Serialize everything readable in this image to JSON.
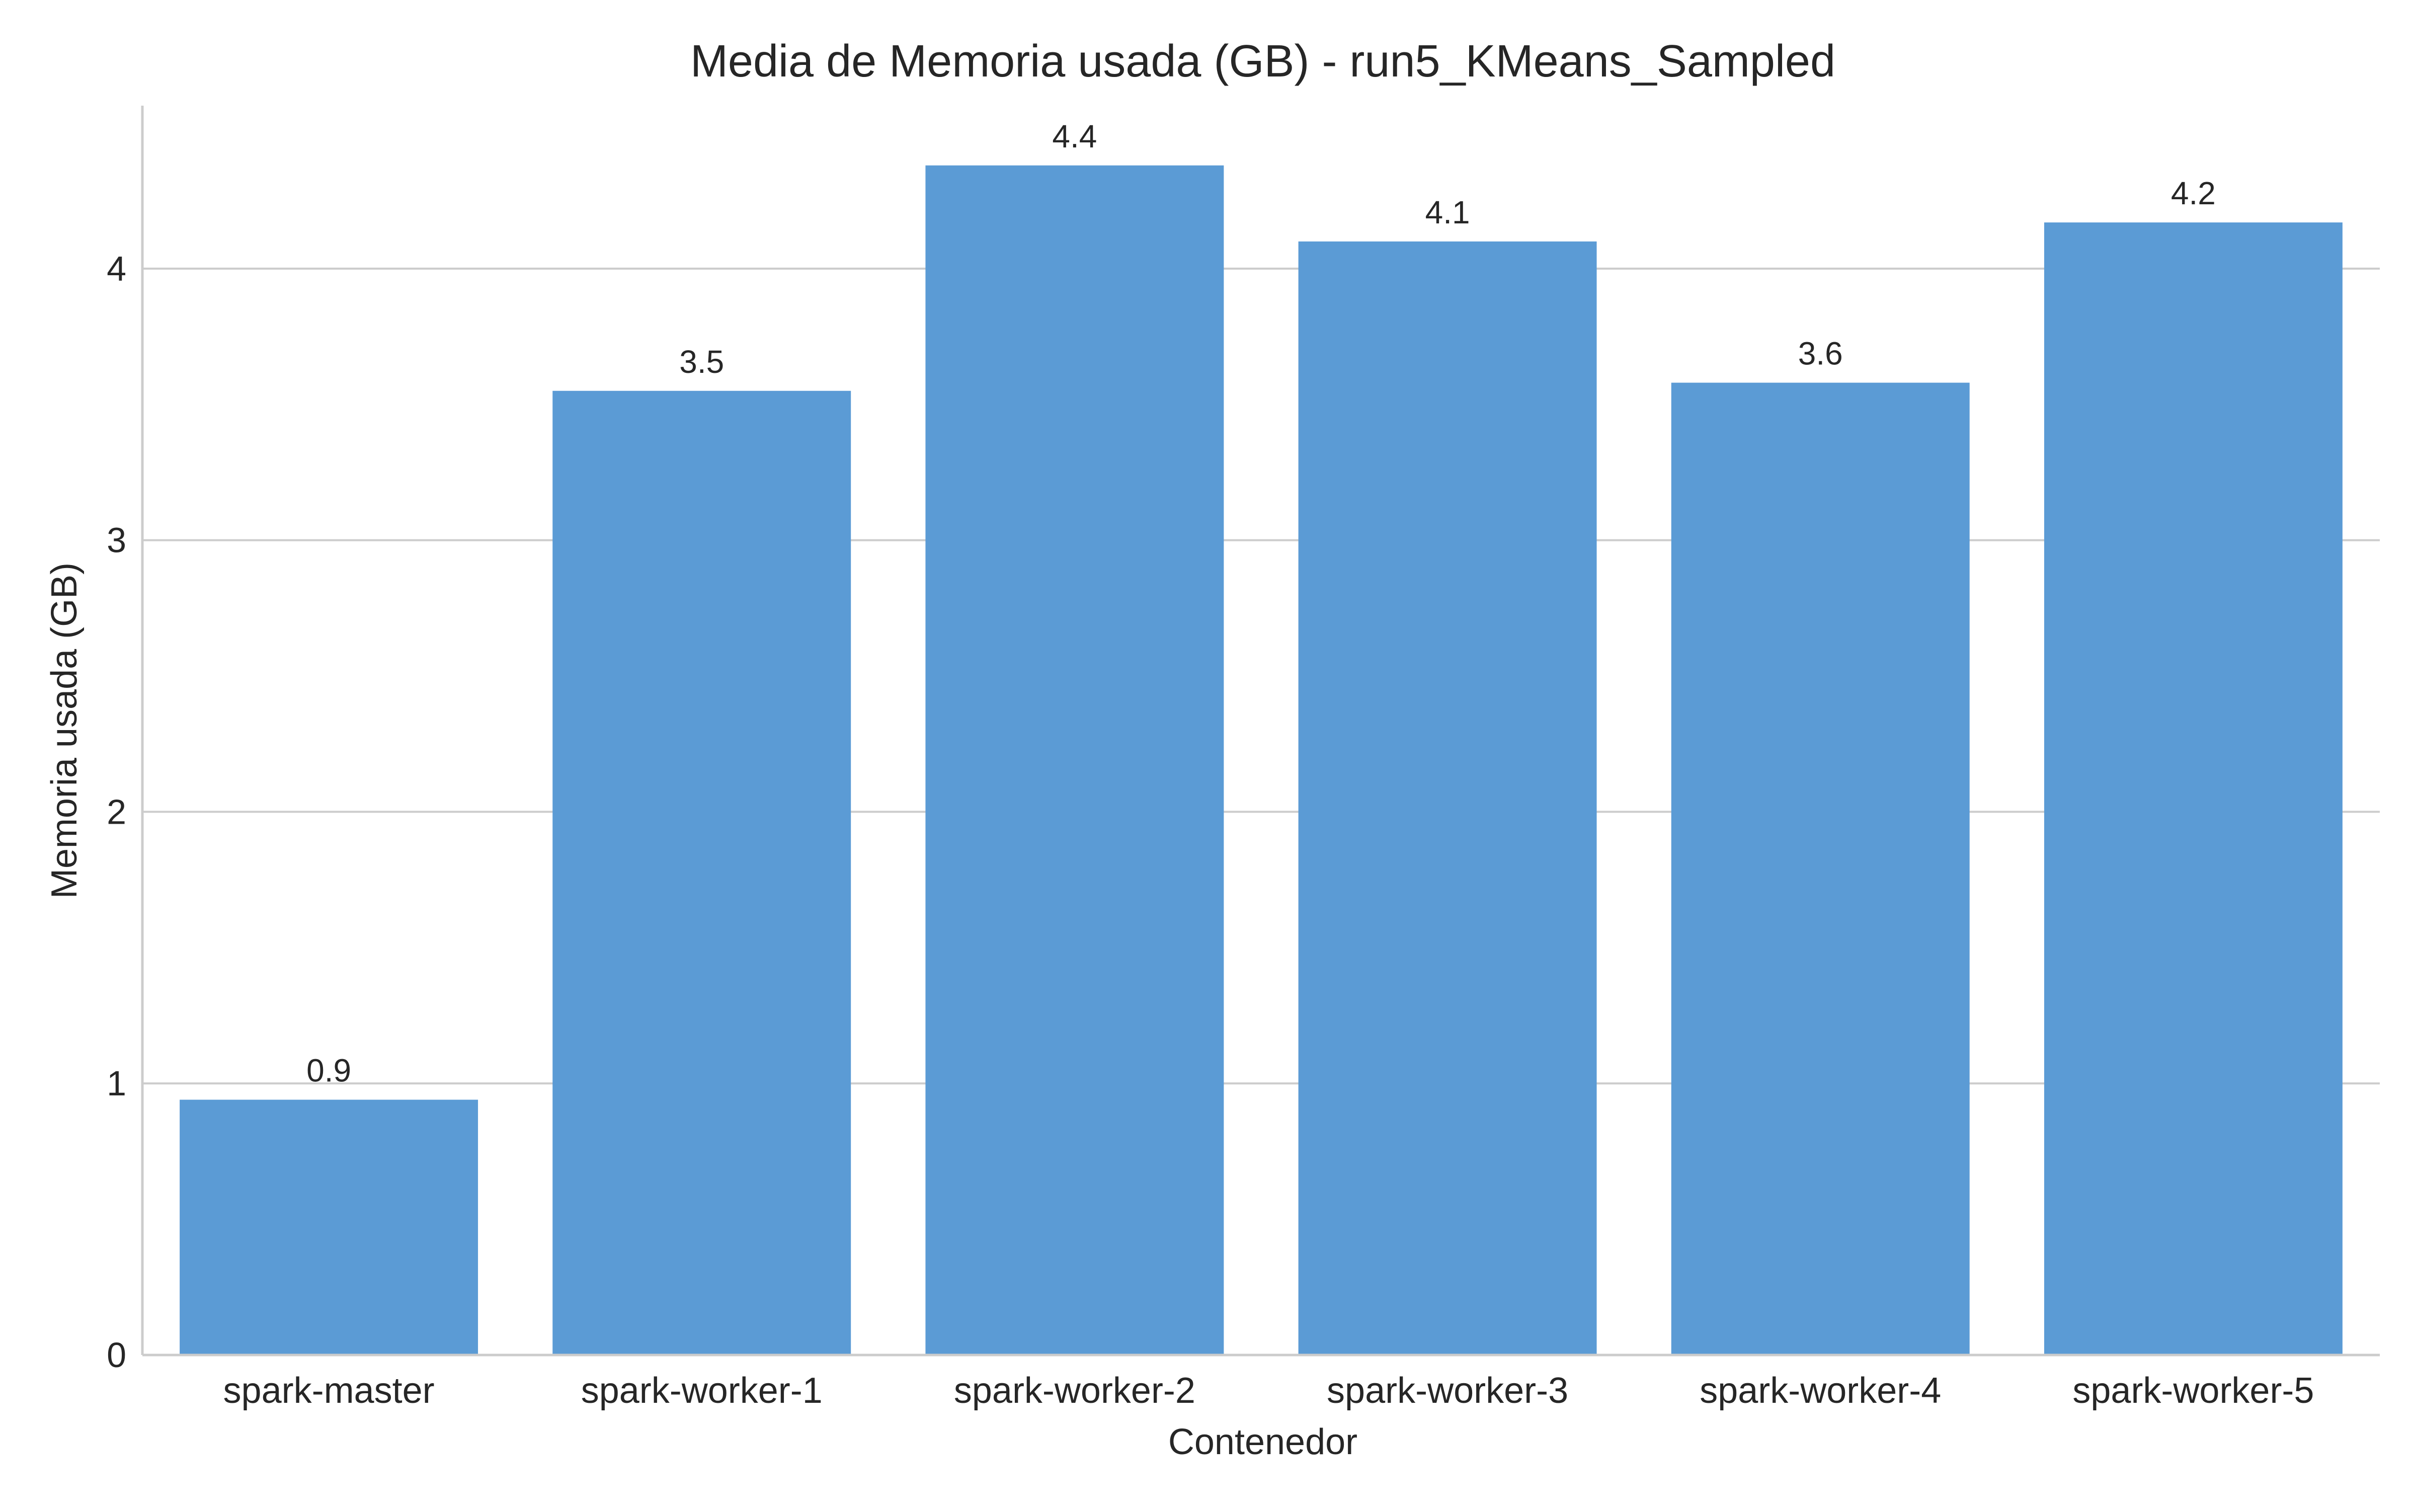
{
  "chart_data": {
    "type": "bar",
    "title": "Media de Memoria usada (GB) - run5_KMeans_Sampled",
    "xlabel": "Contenedor",
    "ylabel": "Memoria usada (GB)",
    "categories": [
      "spark-master",
      "spark-worker-1",
      "spark-worker-2",
      "spark-worker-3",
      "spark-worker-4",
      "spark-worker-5"
    ],
    "values": [
      0.94,
      3.55,
      4.38,
      4.1,
      3.58,
      4.17
    ],
    "value_labels": [
      "0.9",
      "3.5",
      "4.4",
      "4.1",
      "3.6",
      "4.2"
    ],
    "yticks": [
      0,
      1,
      2,
      3,
      4
    ],
    "ylim": [
      0,
      4.6
    ],
    "grid": "y",
    "bar_color": "#5b9bd5",
    "grid_color": "#cccccc",
    "axis_color": "#cccccc",
    "text_color": "#262626"
  }
}
